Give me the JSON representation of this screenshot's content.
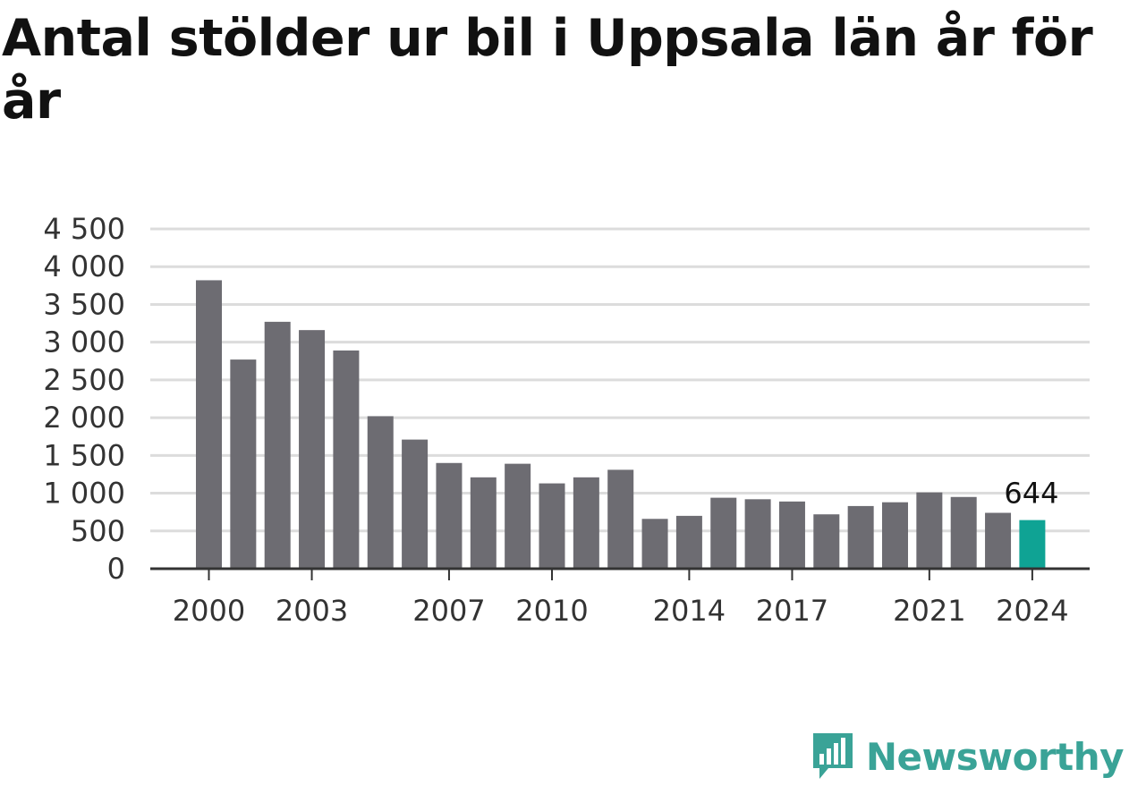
{
  "title": "Antal stölder ur bil i Uppsala län år för år",
  "colors": {
    "bar": "#6d6c72",
    "highlight": "#0fa394",
    "grid": "#dcdcdc",
    "axis": "#333333",
    "brand": "#3aa397"
  },
  "brand": {
    "name": "Newsworthy",
    "icon": "newsworthy-logo-icon"
  },
  "chart_data": {
    "type": "bar",
    "title": "Antal stölder ur bil i Uppsala län år för år",
    "xlabel": "",
    "ylabel": "",
    "ylim": [
      0,
      4500
    ],
    "y_ticks": [
      0,
      500,
      1000,
      1500,
      2000,
      2500,
      3000,
      3500,
      4000,
      4500
    ],
    "y_tick_labels": [
      "0",
      "500",
      "1 000",
      "1 500",
      "2 000",
      "2 500",
      "3 000",
      "3 500",
      "4 000",
      "4 500"
    ],
    "x_tick_labels": [
      "2000",
      "2003",
      "2007",
      "2010",
      "2014",
      "2017",
      "2021",
      "2024"
    ],
    "grid": true,
    "categories": [
      "2000",
      "2001",
      "2002",
      "2003",
      "2004",
      "2005",
      "2006",
      "2007",
      "2008",
      "2009",
      "2010",
      "2011",
      "2012",
      "2013",
      "2014",
      "2015",
      "2016",
      "2017",
      "2018",
      "2019",
      "2020",
      "2021",
      "2022",
      "2023",
      "2024"
    ],
    "values": [
      3820,
      2770,
      3270,
      3160,
      2890,
      2020,
      1710,
      1400,
      1210,
      1390,
      1130,
      1210,
      1310,
      660,
      700,
      940,
      920,
      890,
      720,
      830,
      880,
      1010,
      950,
      740,
      644
    ],
    "highlight_index": 24,
    "annotations": [
      {
        "category": "2024",
        "label": "644"
      }
    ]
  }
}
